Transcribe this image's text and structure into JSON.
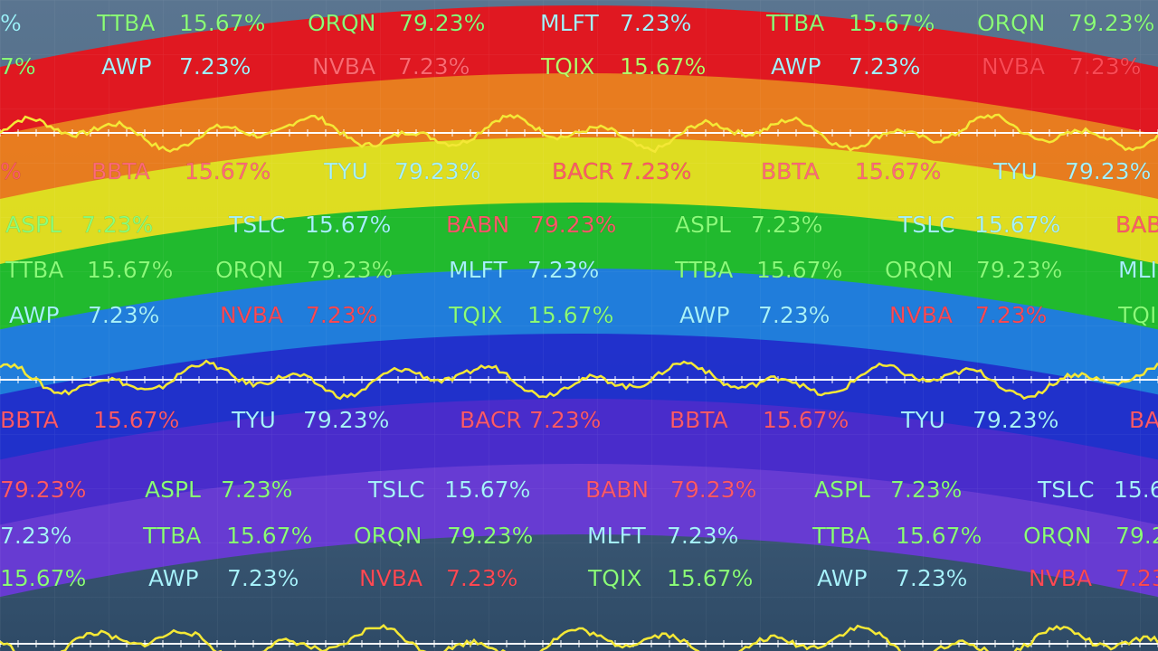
{
  "ticker": {
    "rows": [
      {
        "items": [
          {
            "change": "%",
            "color": "#9ff5ff"
          },
          {
            "symbol": "TTBA",
            "change": "15.67%",
            "color": "#8cff7a"
          },
          {
            "symbol": "ORQN",
            "change": "79.23%",
            "color": "#8cff7a"
          },
          {
            "symbol": "MLFT",
            "change": "7.23%",
            "color": "#a8f4ff"
          },
          {
            "symbol": "TTBA",
            "change": "15.67%",
            "color": "#8cff7a"
          },
          {
            "symbol": "ORQN",
            "change": "79.23%",
            "color": "#8cff7a"
          }
        ]
      },
      {
        "items": [
          {
            "change": "7%",
            "color": "#8cff7a"
          },
          {
            "symbol": "AWP",
            "change": "7.23%",
            "color": "#a8f4ff"
          },
          {
            "symbol": "NVBA",
            "change": "7.23%",
            "color": "#ff6a72"
          },
          {
            "symbol": "TQIX",
            "change": "15.67%",
            "color": "#b8ff6a"
          },
          {
            "symbol": "AWP",
            "change": "7.23%",
            "color": "#a8f4ff"
          },
          {
            "symbol": "NVBA",
            "change": "7.23%",
            "color": "#ff4a55"
          }
        ]
      },
      {
        "items": [
          {
            "change": "%",
            "color": "#ff5a6a"
          },
          {
            "symbol": "BBTA",
            "change": "15.67%",
            "color": "#ff6a78"
          },
          {
            "symbol": "TYU",
            "change": "79.23%",
            "color": "#a8f4ff"
          },
          {
            "symbol": "BACR",
            "change": "7.23%",
            "color": "#ff5a6a"
          },
          {
            "symbol": "BBTA",
            "change": "15.67%",
            "color": "#ff6a78"
          },
          {
            "symbol": "TYU",
            "change": "79.23%",
            "color": "#a8f4ff"
          }
        ]
      },
      {
        "items": [
          {
            "symbol": "ASPL",
            "change": "7.23%",
            "color": "#8cff7a"
          },
          {
            "symbol": "TSLC",
            "change": "15.67%",
            "color": "#a8f4ff"
          },
          {
            "symbol": "BABN",
            "change": "79.23%",
            "color": "#ff5a6a"
          },
          {
            "symbol": "ASPL",
            "change": "7.23%",
            "color": "#8cff7a"
          },
          {
            "symbol": "TSLC",
            "change": "15.67%",
            "color": "#a8f4ff"
          },
          {
            "symbol": "BAB",
            "color": "#ff5a6a"
          }
        ]
      },
      {
        "items": [
          {
            "symbol": "TTBA",
            "change": "15.67%",
            "color": "#8cff7a"
          },
          {
            "symbol": "ORQN",
            "change": "79.23%",
            "color": "#8cff7a"
          },
          {
            "symbol": "MLFT",
            "change": "7.23%",
            "color": "#a8f4ff"
          },
          {
            "symbol": "TTBA",
            "change": "15.67%",
            "color": "#8cff7a"
          },
          {
            "symbol": "ORQN",
            "change": "79.23%",
            "color": "#8cff7a"
          },
          {
            "symbol": "MLI",
            "color": "#a8f4ff"
          }
        ]
      },
      {
        "items": [
          {
            "symbol": "AWP",
            "change": "7.23%",
            "color": "#a8f4ff"
          },
          {
            "symbol": "NVBA",
            "change": "7.23%",
            "color": "#ff4a55"
          },
          {
            "symbol": "TQIX",
            "change": "15.67%",
            "color": "#8cff7a"
          },
          {
            "symbol": "AWP",
            "change": "7.23%",
            "color": "#a8f4ff"
          },
          {
            "symbol": "NVBA",
            "change": "7.23%",
            "color": "#ff4a55"
          },
          {
            "symbol": "TQI",
            "color": "#8cff7a"
          }
        ]
      },
      {
        "items": [
          {
            "symbol": "BBTA",
            "change": "15.67%",
            "color": "#ff5a6a"
          },
          {
            "symbol": "TYU",
            "change": "79.23%",
            "color": "#a8f4ff"
          },
          {
            "symbol": "BACR",
            "change": "7.23%",
            "color": "#ff5a6a"
          },
          {
            "symbol": "BBTA",
            "change": "15.67%",
            "color": "#ff5a6a"
          },
          {
            "symbol": "TYU",
            "change": "79.23%",
            "color": "#a8f4ff"
          },
          {
            "symbol": "BA",
            "color": "#ff5a6a"
          }
        ]
      },
      {
        "items": [
          {
            "change": "79.23%",
            "color": "#ff5a6a"
          },
          {
            "symbol": "ASPL",
            "change": "7.23%",
            "color": "#8cff7a"
          },
          {
            "symbol": "TSLC",
            "change": "15.67%",
            "color": "#a8f4ff"
          },
          {
            "symbol": "BABN",
            "change": "79.23%",
            "color": "#ff5a6a"
          },
          {
            "symbol": "ASPL",
            "change": "7.23%",
            "color": "#8cff7a"
          },
          {
            "symbol": "TSLC",
            "change": "15.6",
            "color": "#a8f4ff"
          }
        ]
      },
      {
        "items": [
          {
            "change": "7.23%",
            "color": "#a8f4ff"
          },
          {
            "symbol": "TTBA",
            "change": "15.67%",
            "color": "#8cff7a"
          },
          {
            "symbol": "ORQN",
            "change": "79.23%",
            "color": "#8cff7a"
          },
          {
            "symbol": "MLFT",
            "change": "7.23%",
            "color": "#a8f4ff"
          },
          {
            "symbol": "TTBA",
            "change": "15.67%",
            "color": "#8cff7a"
          },
          {
            "symbol": "ORQN",
            "change": "79.2",
            "color": "#8cff7a"
          }
        ]
      },
      {
        "items": [
          {
            "change": "15.67%",
            "color": "#8cff7a"
          },
          {
            "symbol": "AWP",
            "change": "7.23%",
            "color": "#a8f4ff"
          },
          {
            "symbol": "NVBA",
            "change": "7.23%",
            "color": "#ff4a55"
          },
          {
            "symbol": "TQIX",
            "change": "15.67%",
            "color": "#8cff7a"
          },
          {
            "symbol": "AWP",
            "change": "7.23%",
            "color": "#a8f4ff"
          },
          {
            "symbol": "NVBA",
            "change": "7.23",
            "color": "#ff4a55"
          }
        ]
      }
    ]
  }
}
